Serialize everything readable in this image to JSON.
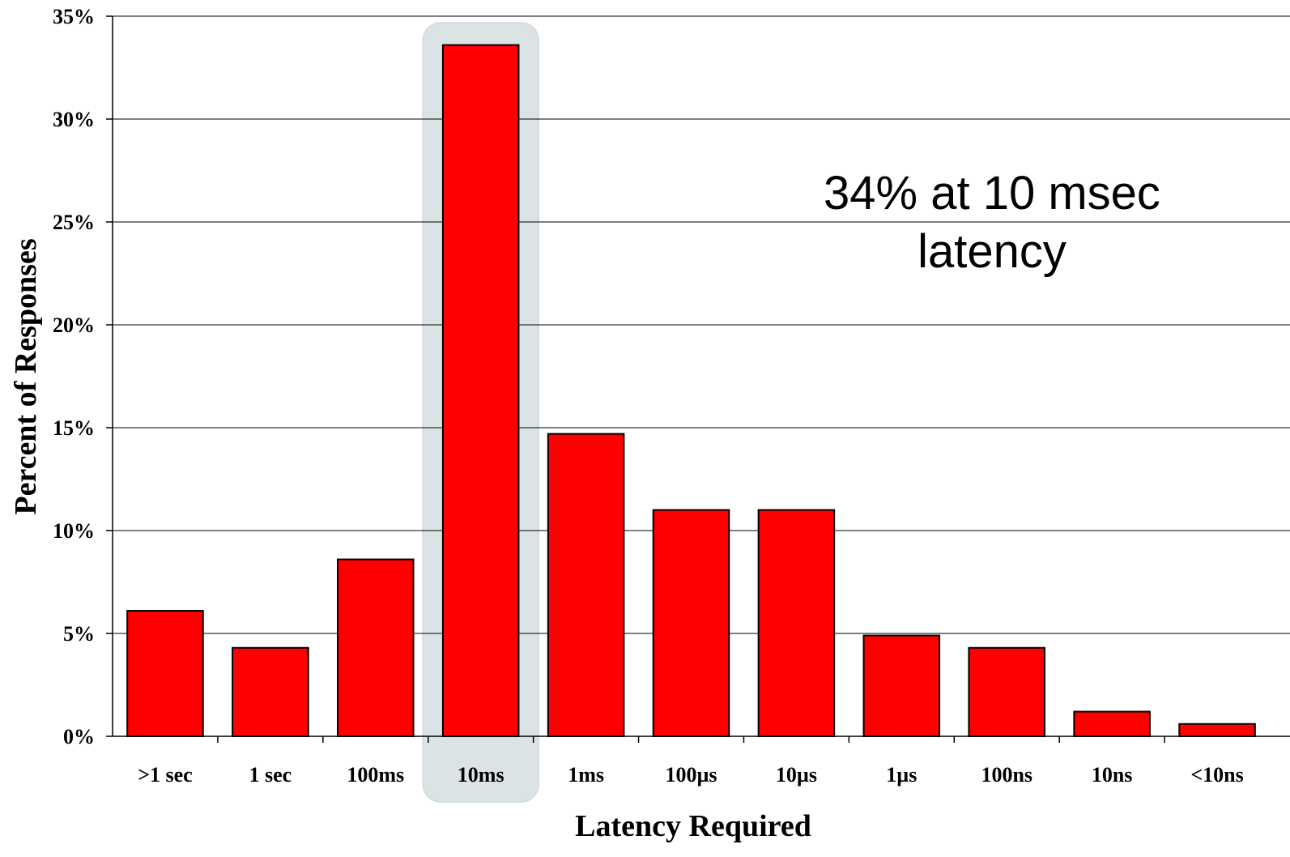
{
  "chart_data": {
    "type": "bar",
    "title": "",
    "xlabel": "Latency Required",
    "ylabel": "Percent of Responses",
    "categories": [
      ">1 sec",
      "1 sec",
      "100ms",
      "10ms",
      "1ms",
      "100µs",
      "10µs",
      "1µs",
      "100ns",
      "10ns",
      "<10ns"
    ],
    "values": [
      6.1,
      4.3,
      8.6,
      33.6,
      14.7,
      11.0,
      11.0,
      4.9,
      4.3,
      1.2,
      0.6
    ],
    "ylim": [
      0,
      35
    ],
    "yticks": [
      0,
      5,
      10,
      15,
      20,
      25,
      30,
      35
    ],
    "ytick_labels": [
      "0%",
      "5%",
      "10%",
      "15%",
      "20%",
      "25%",
      "30%",
      "35%"
    ],
    "grid": true,
    "highlight_category": "10ms",
    "annotation_lines": [
      "34% at 10 msec",
      "latency"
    ],
    "colors": {
      "bar": "#ff0000",
      "highlight": "#d9e1e2"
    }
  }
}
